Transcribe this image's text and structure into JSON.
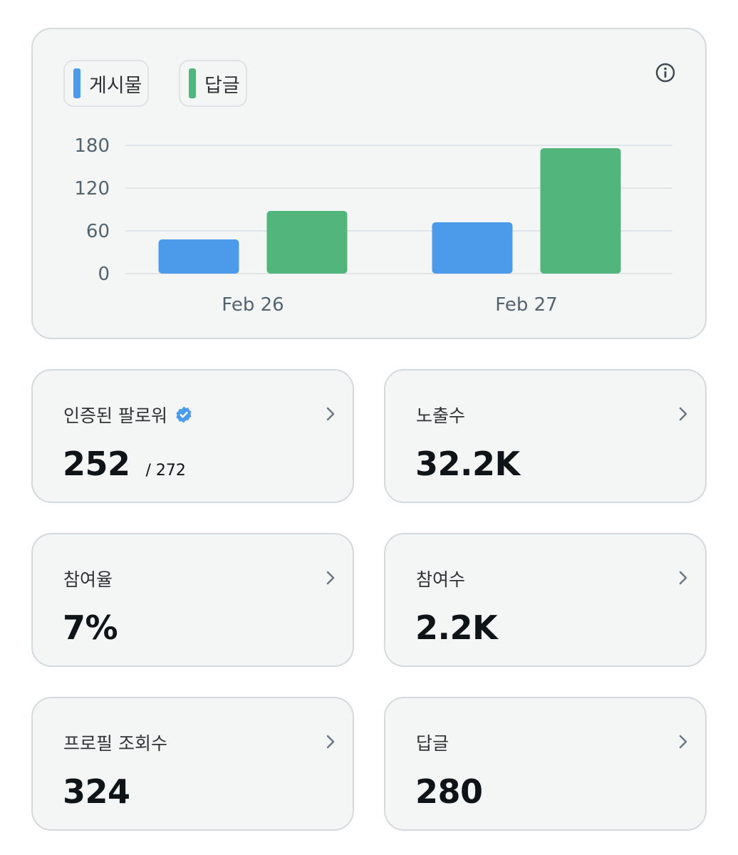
{
  "legend": {
    "posts_label": "게시물",
    "replies_label": "답글",
    "posts_color": "#4c9aea",
    "replies_color": "#52b57c"
  },
  "chart_data": {
    "type": "bar",
    "categories": [
      "Feb 26",
      "Feb 27"
    ],
    "series": [
      {
        "name": "게시물",
        "values": [
          48,
          72
        ],
        "color": "#4c9aea"
      },
      {
        "name": "답글",
        "values": [
          88,
          176
        ],
        "color": "#52b57c"
      }
    ],
    "y_ticks": [
      "0",
      "60",
      "120",
      "180"
    ],
    "ylim": [
      0,
      180
    ],
    "grid": true,
    "title": "",
    "xlabel": "",
    "ylabel": ""
  },
  "stats": {
    "verified_followers": {
      "label": "인증된 팔로워",
      "value": "252",
      "sub": "/ 272"
    },
    "impressions": {
      "label": "노출수",
      "value": "32.2K"
    },
    "engagement_rate": {
      "label": "참여율",
      "value": "7%"
    },
    "engagements": {
      "label": "참여수",
      "value": "2.2K"
    },
    "profile_visits": {
      "label": "프로필 조회수",
      "value": "324"
    },
    "replies": {
      "label": "답글",
      "value": "280"
    }
  }
}
